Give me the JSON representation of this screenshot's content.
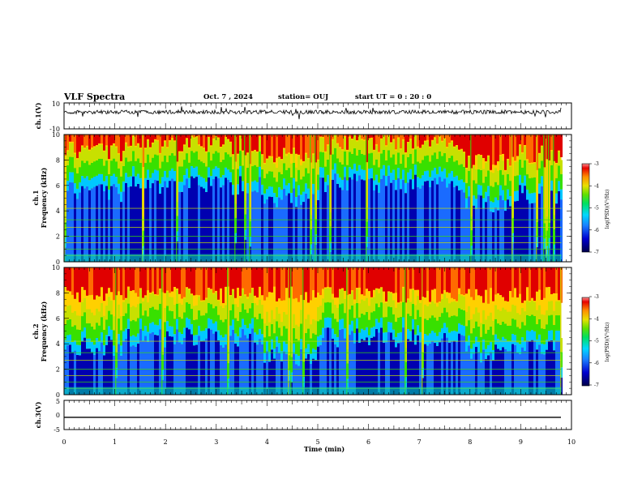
{
  "header": {
    "title": "VLF Spectra",
    "date": "Oct. 7 , 2024",
    "station": "station= OUJ",
    "start": "start UT =  0 : 20 : 0"
  },
  "colors": {
    "colormap": [
      "#00004a",
      "#0000b0",
      "#1a6bff",
      "#00c8ff",
      "#00e0a0",
      "#38e000",
      "#c8e000",
      "#ffd000",
      "#ff6a00",
      "#e00000"
    ],
    "trace": "#000000"
  },
  "chart_data": [
    {
      "type": "line",
      "ylabel": "ch.1(V)",
      "ylim": [
        -10,
        10
      ],
      "yticks": [
        "10",
        "-10"
      ],
      "baseline": 3.0,
      "spread": 1.5
    },
    {
      "type": "heatmap",
      "ylabel": "ch.1",
      "ylabel2": "Frequency  (kHz)",
      "ylim": [
        0,
        10
      ],
      "yticks": [
        "0",
        "2",
        "4",
        "6",
        "8",
        "10"
      ],
      "colorbar": {
        "label": "log(PSD)(V²/Hz)",
        "range": [
          -7,
          -3
        ],
        "ticks": [
          "-3",
          "-4",
          "-5",
          "-6",
          "-7"
        ]
      },
      "blue_segments": [
        [
          0.0,
          1.2,
          5.5
        ],
        [
          1.2,
          3.9,
          6.0
        ],
        [
          3.9,
          5.0,
          5.0
        ],
        [
          5.0,
          7.9,
          6.2
        ],
        [
          7.9,
          8.8,
          4.5
        ],
        [
          8.8,
          9.8,
          5.3
        ]
      ]
    },
    {
      "type": "heatmap",
      "ylabel": "ch.2",
      "ylabel2": "Frequency  (kHz)",
      "ylim": [
        0,
        10
      ],
      "yticks": [
        "0",
        "2",
        "4",
        "6",
        "8",
        "10"
      ],
      "colorbar": {
        "label": "log(PSD)(V²/Hz)",
        "range": [
          -7,
          -3
        ],
        "ticks": [
          "-3",
          "-4",
          "-5",
          "-6",
          "-7"
        ]
      },
      "blue_segments": [
        [
          0.0,
          1.2,
          3.8
        ],
        [
          1.2,
          3.9,
          4.5
        ],
        [
          3.9,
          5.0,
          3.0
        ],
        [
          5.0,
          7.9,
          4.5
        ],
        [
          7.9,
          8.8,
          3.2
        ],
        [
          8.8,
          9.8,
          3.8
        ]
      ]
    },
    {
      "type": "line",
      "ylabel": "ch.3(V)",
      "ylim": [
        -5,
        5
      ],
      "yticks": [
        "5",
        "0",
        "-5"
      ],
      "baseline": -0.8,
      "spread": 0.0
    }
  ],
  "time_axis": {
    "xlabel": "Time  (min)",
    "xlim": [
      0,
      10
    ],
    "ticks": [
      "0",
      "1",
      "2",
      "3",
      "4",
      "5",
      "6",
      "7",
      "8",
      "9",
      "10"
    ],
    "data_end": 9.8
  }
}
